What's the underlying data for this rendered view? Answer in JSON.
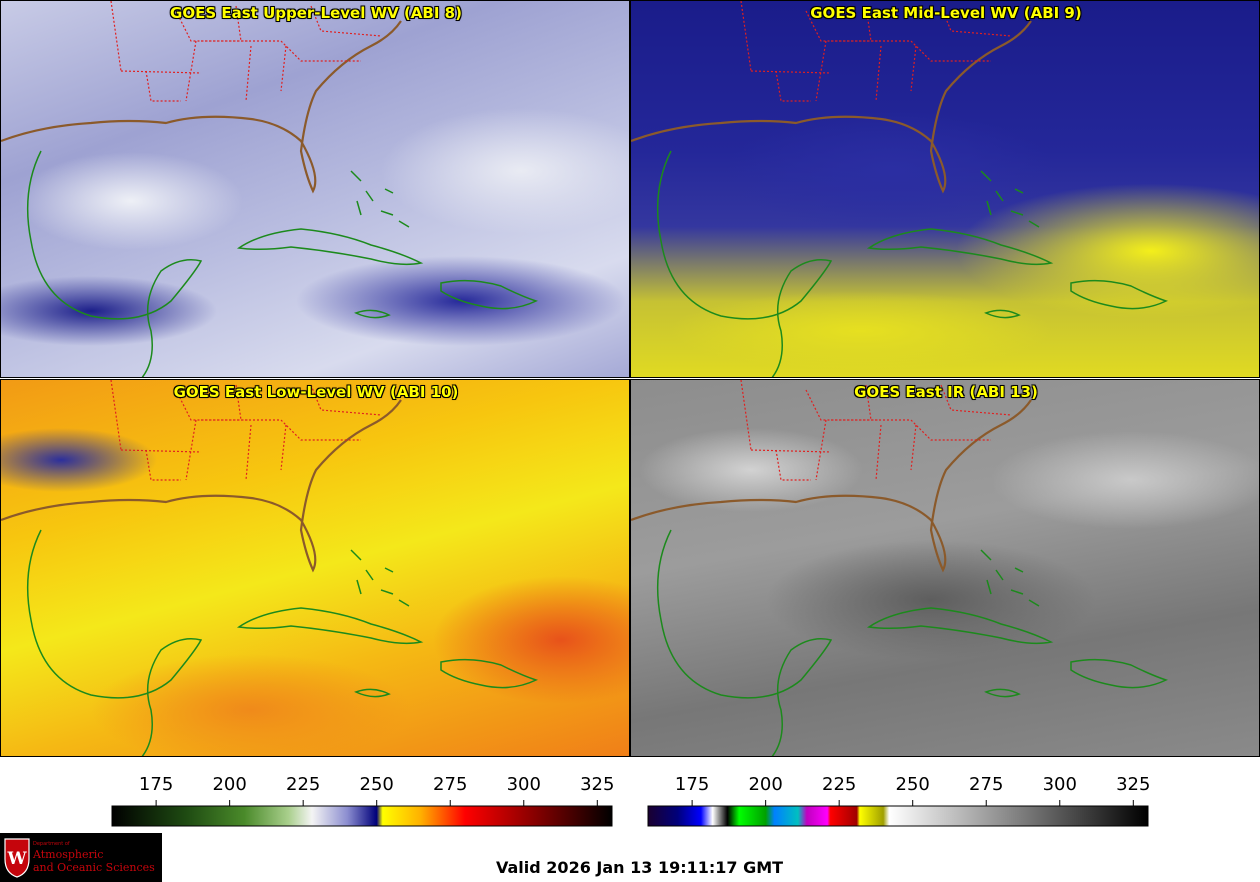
{
  "panels": [
    {
      "title": "GOES East Upper-Level WV (ABI 8)"
    },
    {
      "title": "GOES East Mid-Level WV (ABI 9)"
    },
    {
      "title": "GOES East Low-Level WV (ABI 10)"
    },
    {
      "title": "GOES East IR (ABI 13)"
    }
  ],
  "colorbars": [
    {
      "min": 160,
      "max": 330,
      "ticks": [
        "175",
        "200",
        "225",
        "250",
        "275",
        "300",
        "325"
      ],
      "tick_values": [
        175,
        200,
        225,
        250,
        275,
        300,
        325
      ],
      "stops": [
        {
          "v": 160,
          "c": "#000000"
        },
        {
          "v": 185,
          "c": "#1e4a12"
        },
        {
          "v": 205,
          "c": "#4a8a2a"
        },
        {
          "v": 220,
          "c": "#a9cf8c"
        },
        {
          "v": 228,
          "c": "#f4f4f4"
        },
        {
          "v": 240,
          "c": "#8c8ed0"
        },
        {
          "v": 250,
          "c": "#00007a"
        },
        {
          "v": 252,
          "c": "#ffff00"
        },
        {
          "v": 265,
          "c": "#ffb000"
        },
        {
          "v": 280,
          "c": "#ff0000"
        },
        {
          "v": 300,
          "c": "#9a0000"
        },
        {
          "v": 330,
          "c": "#000000"
        }
      ]
    },
    {
      "min": 160,
      "max": 330,
      "ticks": [
        "175",
        "200",
        "225",
        "250",
        "275",
        "300",
        "325"
      ],
      "tick_values": [
        175,
        200,
        225,
        250,
        275,
        300,
        325
      ],
      "stops": [
        {
          "v": 160,
          "c": "#1a0030"
        },
        {
          "v": 170,
          "c": "#00007a"
        },
        {
          "v": 178,
          "c": "#0000ff"
        },
        {
          "v": 182,
          "c": "#ffffff"
        },
        {
          "v": 187,
          "c": "#000000"
        },
        {
          "v": 191,
          "c": "#00ff00"
        },
        {
          "v": 200,
          "c": "#00a000"
        },
        {
          "v": 203,
          "c": "#0080ff"
        },
        {
          "v": 211,
          "c": "#00c0c0"
        },
        {
          "v": 214,
          "c": "#c000c0"
        },
        {
          "v": 221,
          "c": "#ff00ff"
        },
        {
          "v": 222,
          "c": "#ff0000"
        },
        {
          "v": 231,
          "c": "#a00000"
        },
        {
          "v": 232,
          "c": "#ffff00"
        },
        {
          "v": 240,
          "c": "#a0a000"
        },
        {
          "v": 242,
          "c": "#ffffff"
        },
        {
          "v": 330,
          "c": "#000000"
        }
      ]
    }
  ],
  "logo": {
    "department": "Department of",
    "line1": "Atmospheric",
    "line2": "and Oceanic Sciences",
    "seal_letter": "W"
  },
  "valid_time": "Valid 2026 Jan 13 19:11:17 GMT",
  "colors": {
    "title_text": "#ffff00",
    "coastline": "#1c8a1c",
    "us_coast": "#8b5a2b",
    "state_border": "#e02020"
  }
}
